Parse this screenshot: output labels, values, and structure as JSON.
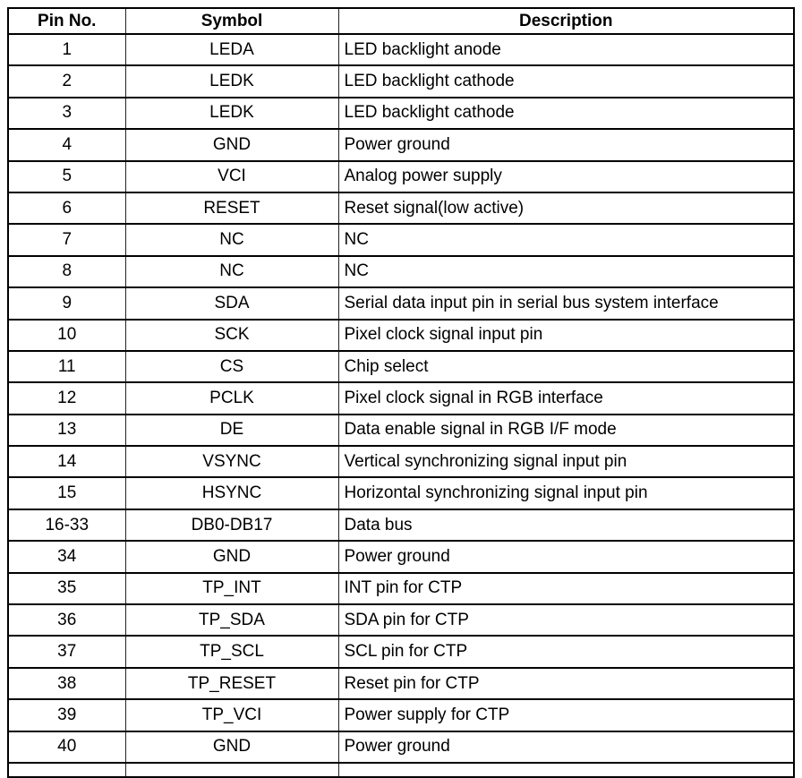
{
  "page": {
    "background_color": "#ffffff",
    "border_color": "#000000",
    "text_color": "#000000"
  },
  "table": {
    "headers": [
      "Pin No.",
      "Symbol",
      "Description"
    ],
    "rows": [
      [
        "1",
        "LEDA",
        "LED backlight anode"
      ],
      [
        "2",
        "LEDK",
        "LED backlight cathode"
      ],
      [
        "3",
        "LEDK",
        "LED backlight cathode"
      ],
      [
        "4",
        "GND",
        "Power ground"
      ],
      [
        "5",
        "VCI",
        "Analog power supply"
      ],
      [
        "6",
        "RESET",
        "Reset signal(low active)"
      ],
      [
        "7",
        "NC",
        "NC"
      ],
      [
        "8",
        "NC",
        "NC"
      ],
      [
        "9",
        "SDA",
        "Serial data input pin in serial bus system interface"
      ],
      [
        "10",
        "SCK",
        "Pixel clock signal input pin"
      ],
      [
        "11",
        "CS",
        "Chip select"
      ],
      [
        "12",
        "PCLK",
        "Pixel clock signal in RGB interface"
      ],
      [
        "13",
        "DE",
        "Data enable signal in RGB I/F mode"
      ],
      [
        "14",
        "VSYNC",
        "Vertical synchronizing signal input pin"
      ],
      [
        "15",
        "HSYNC",
        "Horizontal synchronizing signal input pin"
      ],
      [
        "16-33",
        "DB0-DB17",
        "Data bus"
      ],
      [
        "34",
        "GND",
        "Power ground"
      ],
      [
        "35",
        "TP_INT",
        "INT pin for CTP"
      ],
      [
        "36",
        "TP_SDA",
        "SDA pin for CTP"
      ],
      [
        "37",
        "TP_SCL",
        "SCL pin for CTP"
      ],
      [
        "38",
        "TP_RESET",
        "Reset pin for CTP"
      ],
      [
        "39",
        "TP_VCI",
        "Power supply for CTP"
      ],
      [
        "40",
        "GND",
        "Power ground"
      ]
    ]
  }
}
